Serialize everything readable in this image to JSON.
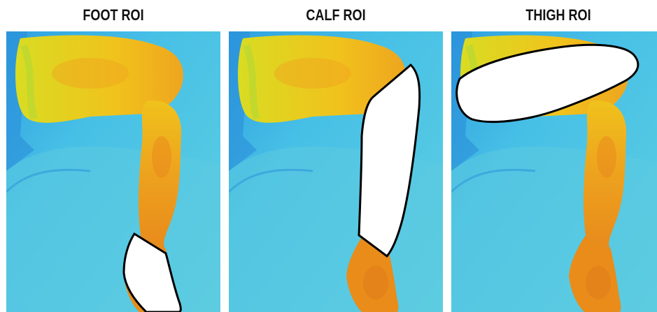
{
  "panels": [
    {
      "title": "FOOT ROI",
      "roi": "foot"
    },
    {
      "title": "CALF ROI",
      "roi": "calf"
    },
    {
      "title": "THIGH ROI",
      "roi": "thigh"
    }
  ],
  "colors": {
    "background_cool": "#3bb8e6",
    "background_light": "#7fd9e6",
    "background_dark": "#2a8fd6",
    "skin_warm": "#f2b21c",
    "skin_hot": "#e8901e",
    "skin_edge": "#b8e02a",
    "roi_fill": "#ffffff",
    "roi_outline": "#000000"
  }
}
